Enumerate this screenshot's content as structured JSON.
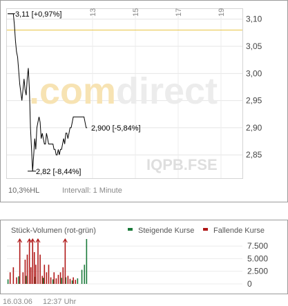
{
  "colors": {
    "price_line": "#000000",
    "ref_line": "#e8c440",
    "volume_up": "#1a7a3a",
    "volume_down": "#b01818",
    "grid": "#d4d4d4",
    "frame": "#9a9a9a",
    "watermark_com": "#f7e3b3",
    "watermark_direct": "#ececec"
  },
  "watermark": {
    "part1": ".com",
    "part2": "direct",
    "symbol": "IQPB.FSE"
  },
  "price_panel": {
    "range_label": "10,3%HL",
    "interval_label": "Intervall: 1 Minute",
    "annotations": {
      "high": "3,11 [+0,97%]",
      "last": "2,900 [-5,84%]",
      "low": "2,82 [-8,44%]"
    }
  },
  "volume_panel": {
    "title": "Stück-Volumen (rot-grün)",
    "legend": [
      {
        "label": "Steigende Kurse",
        "color": "#1a7a3a"
      },
      {
        "label": "Fallende Kurse",
        "color": "#b01818"
      }
    ]
  },
  "footer": {
    "date": "16.03.06",
    "time": "12:37 Uhr"
  },
  "chart_data": [
    {
      "type": "line",
      "x_ticks": [
        "13",
        "15",
        "17",
        "19"
      ],
      "y_ticks": [
        "3,10",
        "3,05",
        "3,00",
        "2,95",
        "2,90",
        "2,85"
      ],
      "ylim": [
        2.807,
        3.12
      ],
      "xlim": [
        9,
        20
      ],
      "reference_value": 3.08,
      "series": [
        {
          "x": [
            9.05,
            9.3,
            9.35,
            9.4,
            9.45,
            9.5,
            9.6,
            9.7,
            9.8,
            9.85,
            9.9,
            9.95,
            10.0,
            10.05,
            10.1,
            10.15,
            10.2,
            10.25,
            10.3,
            10.35,
            10.4,
            10.45,
            10.5,
            10.55,
            10.6,
            10.65,
            10.7,
            10.75,
            10.8,
            10.85,
            10.9,
            10.95,
            11.0,
            11.05,
            11.1,
            11.15,
            11.2,
            11.25,
            11.3,
            11.35,
            11.4,
            11.45,
            11.5,
            11.55,
            11.6,
            11.65,
            11.7,
            11.75,
            11.8,
            11.85,
            11.9,
            11.95,
            12.0,
            12.05,
            12.1,
            12.15,
            12.2,
            12.25,
            12.3,
            12.35,
            12.4,
            12.5,
            12.6,
            12.7,
            12.75
          ],
          "values": [
            3.11,
            3.11,
            3.09,
            3.06,
            3.04,
            3.03,
            2.98,
            2.95,
            2.99,
            2.97,
            2.96,
            2.99,
            3.01,
            2.97,
            2.9,
            2.86,
            2.82,
            2.85,
            2.88,
            2.86,
            2.9,
            2.91,
            2.92,
            2.91,
            2.88,
            2.89,
            2.88,
            2.87,
            2.87,
            2.89,
            2.88,
            2.87,
            2.87,
            2.87,
            2.87,
            2.87,
            2.86,
            2.86,
            2.85,
            2.85,
            2.86,
            2.85,
            2.86,
            2.86,
            2.87,
            2.88,
            2.87,
            2.89,
            2.89,
            2.88,
            2.89,
            2.9,
            2.9,
            2.91,
            2.92,
            2.92,
            2.92,
            2.92,
            2.92,
            2.92,
            2.92,
            2.92,
            2.92,
            2.9,
            2.9
          ]
        }
      ],
      "high": 3.11,
      "last": 2.9,
      "low": 2.82
    },
    {
      "type": "bar",
      "y_ticks": [
        "7.500",
        "5.000",
        "2.500",
        "0"
      ],
      "ylim": [
        0,
        8900
      ],
      "xlim": [
        9,
        20
      ],
      "series": [
        {
          "name": "Steigende Kurse",
          "x": [
            9.05,
            9.55,
            9.9,
            10.3,
            10.7,
            11.15,
            11.55,
            11.75,
            12.05,
            12.3,
            12.5,
            12.62,
            12.72
          ],
          "values": [
            900,
            1500,
            1600,
            1400,
            1200,
            900,
            1200,
            1300,
            700,
            1100,
            2800,
            3800,
            8900
          ]
        },
        {
          "name": "Fallende Kurse",
          "x": [
            9.15,
            9.3,
            9.45,
            9.6,
            9.75,
            9.85,
            9.95,
            10.05,
            10.12,
            10.2,
            10.28,
            10.35,
            10.45,
            10.55,
            10.65,
            10.75,
            10.85,
            10.95,
            11.05,
            11.2,
            11.3,
            11.4,
            11.5,
            11.62,
            11.72,
            11.85,
            11.95,
            12.1,
            12.2
          ],
          "values": [
            2300,
            3300,
            1300,
            8900,
            2300,
            4800,
            5800,
            8900,
            3300,
            8900,
            6300,
            3800,
            8900,
            5800,
            1600,
            3800,
            2300,
            3800,
            1300,
            2300,
            1100,
            1800,
            2300,
            3300,
            8900,
            1600,
            1000,
            1300,
            800
          ]
        }
      ],
      "overflow_markers": [
        9.6,
        10.05,
        10.2,
        10.45,
        11.72
      ]
    }
  ]
}
